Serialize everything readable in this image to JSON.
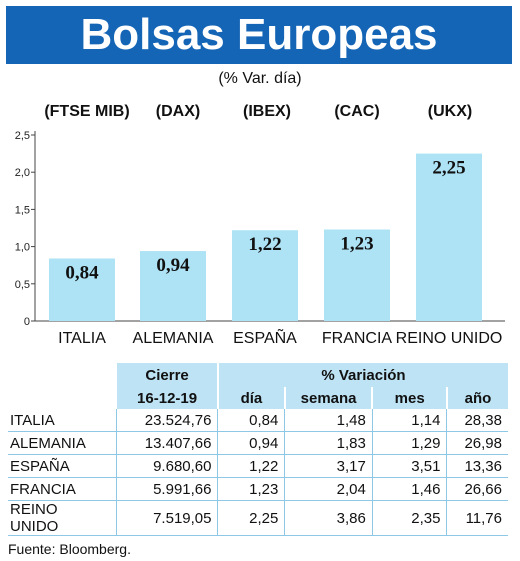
{
  "header": {
    "title": "Bolsas Europeas",
    "subtitle": "(% Var. día)"
  },
  "indices": [
    "(FTSE MIB)",
    "(DAX)",
    "(IBEX)",
    "(CAC)",
    "(UKX)"
  ],
  "colors": {
    "banner": "#1565b6",
    "bar": "#aee3f6",
    "table_header": "#bde3f5"
  },
  "chart_data": {
    "type": "bar",
    "categories": [
      "ITALIA",
      "ALEMANIA",
      "ESPAÑA",
      "FRANCIA",
      "REINO UNIDO"
    ],
    "values": [
      0.84,
      0.94,
      1.22,
      1.23,
      2.25
    ],
    "value_labels": [
      "0,84",
      "0,94",
      "1,22",
      "1,23",
      "2,25"
    ],
    "ylim": [
      0,
      2.5
    ],
    "yticks": [
      0,
      0.5,
      1.0,
      1.5,
      2.0,
      2.5
    ],
    "ytick_labels": [
      "0",
      "0,5",
      "1,0",
      "1,5",
      "2,0",
      "2,5"
    ],
    "grid": false
  },
  "table": {
    "group_headers": {
      "close": "Cierre",
      "variation": "% Variación"
    },
    "subheaders": [
      "16-12-19",
      "día",
      "semana",
      "mes",
      "año"
    ],
    "rows": [
      {
        "country": "ITALIA",
        "close": "23.524,76",
        "day": "0,84",
        "week": "1,48",
        "month": "1,14",
        "year": "28,38"
      },
      {
        "country": "ALEMANIA",
        "close": "13.407,66",
        "day": "0,94",
        "week": "1,83",
        "month": "1,29",
        "year": "26,98"
      },
      {
        "country": "ESPAÑA",
        "close": "9.680,60",
        "day": "1,22",
        "week": "3,17",
        "month": "3,51",
        "year": "13,36"
      },
      {
        "country": "FRANCIA",
        "close": "5.991,66",
        "day": "1,23",
        "week": "2,04",
        "month": "1,46",
        "year": "26,66"
      },
      {
        "country": "REINO UNIDO",
        "close": "7.519,05",
        "day": "2,25",
        "week": "3,86",
        "month": "2,35",
        "year": "11,76"
      }
    ]
  },
  "source": "Fuente: Bloomberg."
}
